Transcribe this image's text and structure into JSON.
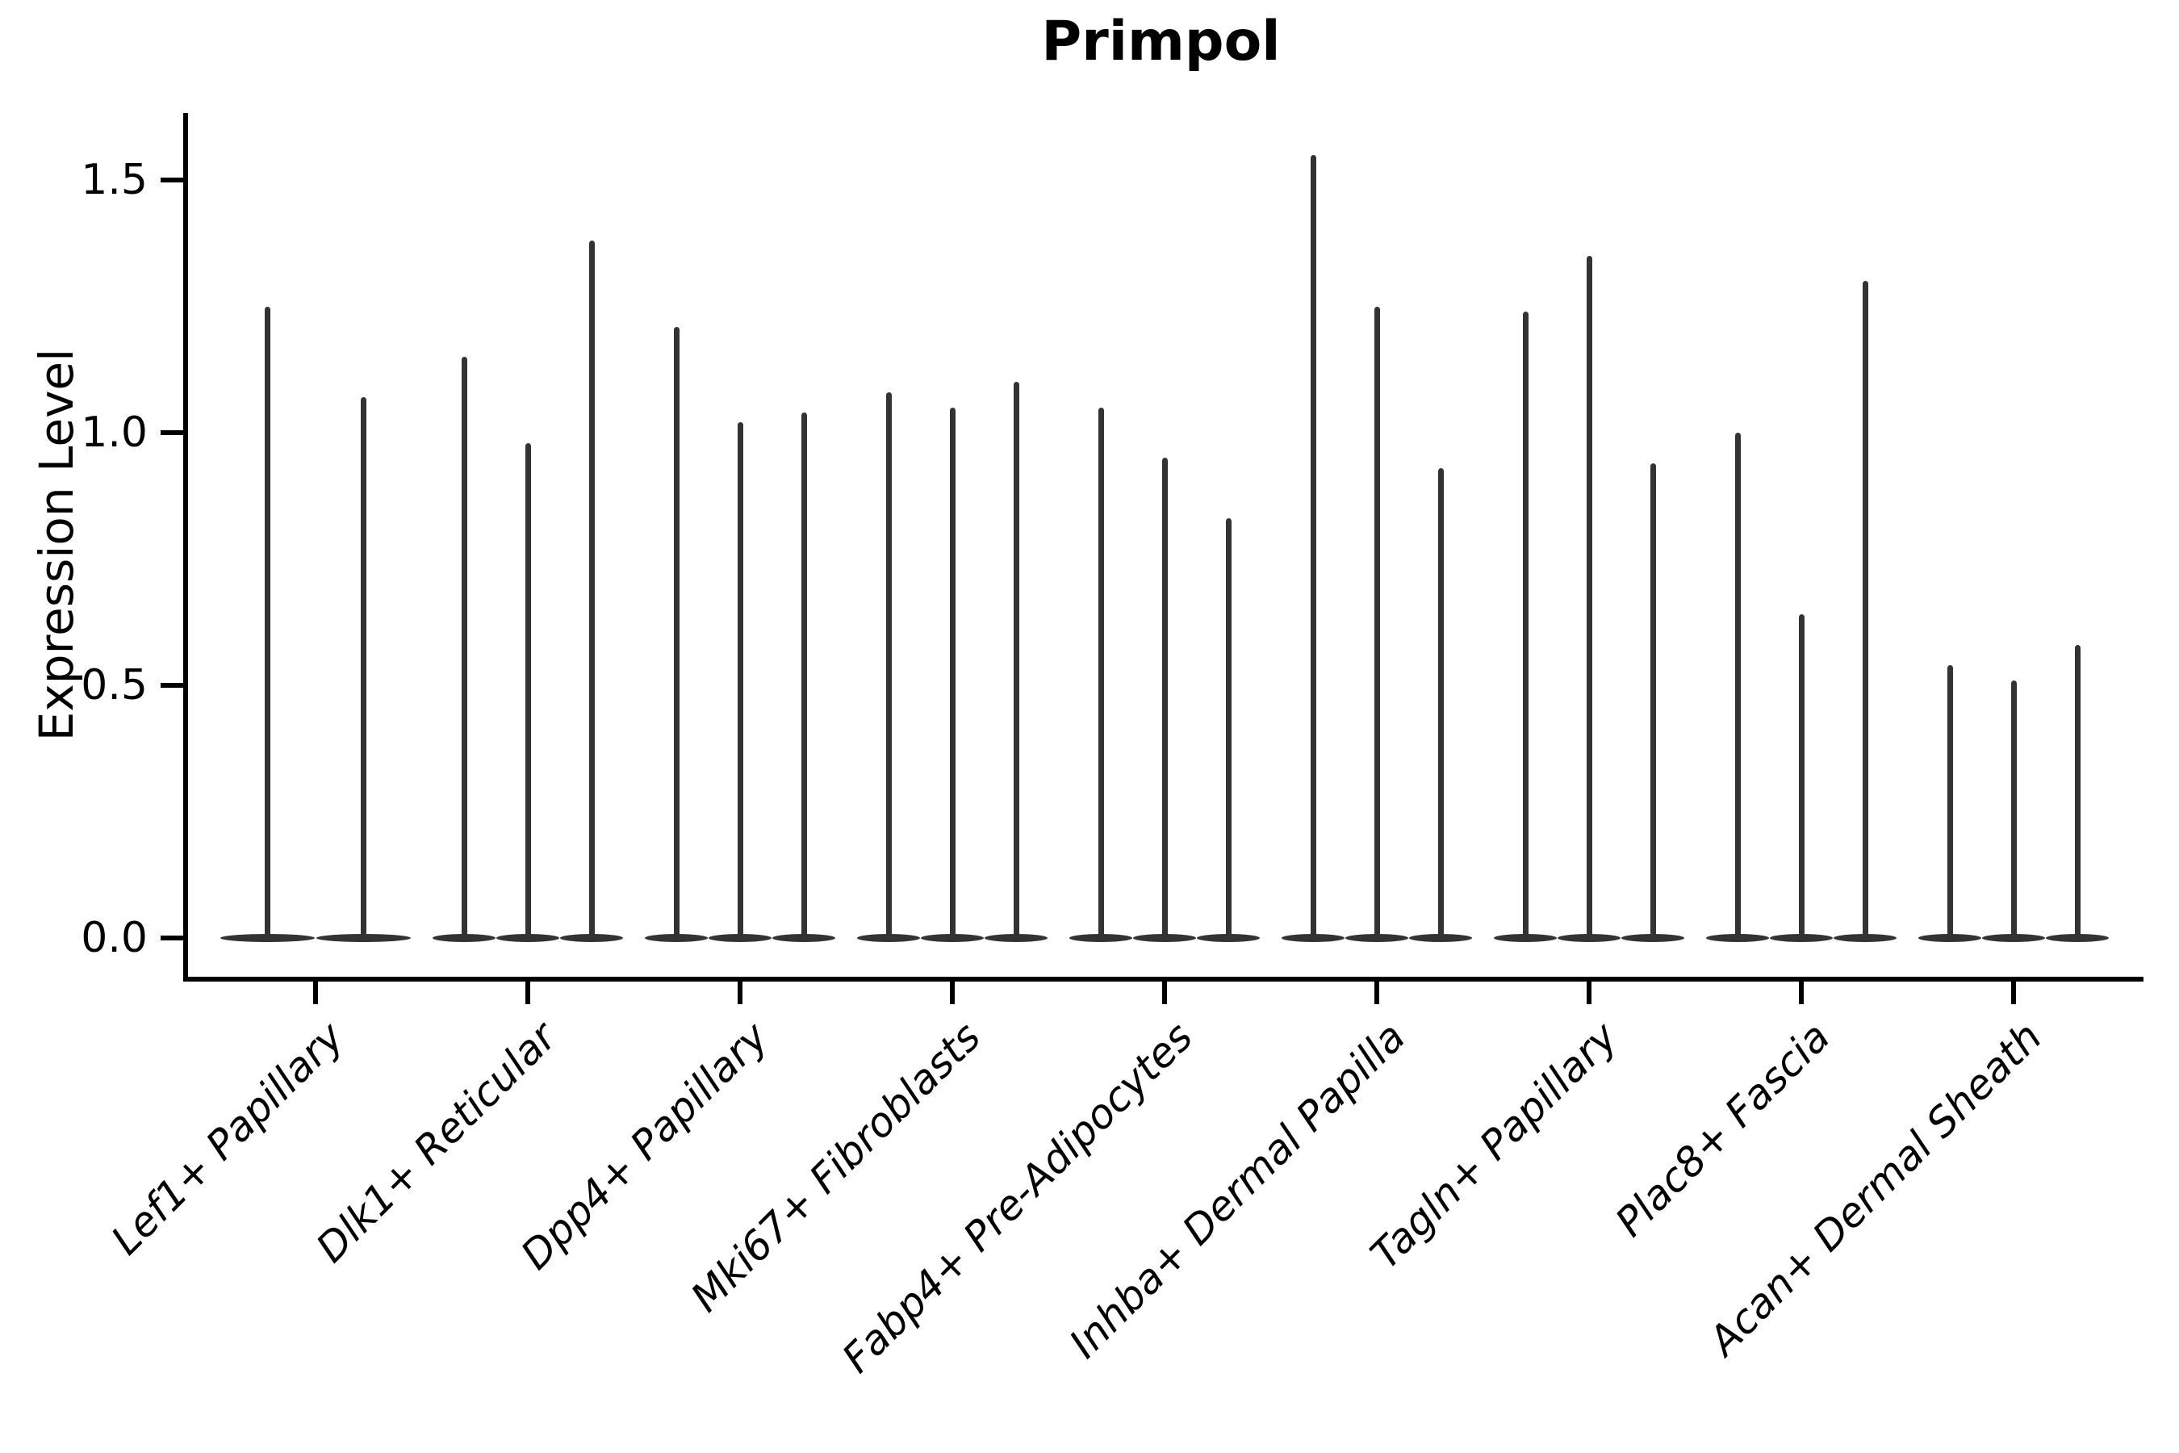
{
  "figure": {
    "title": "Primpol",
    "ylabel": "Expression Level"
  },
  "colors": {
    "violin": "#333333",
    "axis": "#000000",
    "text": "#000000",
    "background": "#ffffff"
  },
  "chart_data": {
    "type": "violin",
    "title": "Primpol",
    "xlabel": "",
    "ylabel": "Expression Level",
    "ylim": [
      0,
      1.63
    ],
    "yticks": [
      "0.0",
      "0.5",
      "1.0",
      "1.5"
    ],
    "grid": false,
    "legend": "none",
    "x_tick_rotation": 45,
    "categories": [
      "Lef1+ Papillary",
      "Dlk1+ Reticular",
      "Dpp4+ Papillary",
      "Mki67+ Fibroblasts",
      "Fabp4+ Pre-Adipocytes",
      "Inhba+ Dermal Papilla",
      "Tagln+ Papillary",
      "Plac8+ Fascia",
      "Acan+ Dermal Sheath"
    ],
    "groups": [
      {
        "category": "Lef1+ Papillary",
        "violin_maxima": [
          1.25,
          1.07
        ]
      },
      {
        "category": "Dlk1+ Reticular",
        "violin_maxima": [
          1.15,
          0.98,
          1.38
        ]
      },
      {
        "category": "Dpp4+ Papillary",
        "violin_maxima": [
          1.21,
          1.02,
          1.04
        ]
      },
      {
        "category": "Mki67+ Fibroblasts",
        "violin_maxima": [
          1.08,
          1.05,
          1.1
        ]
      },
      {
        "category": "Fabp4+ Pre-Adipocytes",
        "violin_maxima": [
          1.05,
          0.95,
          0.83
        ]
      },
      {
        "category": "Inhba+ Dermal Papilla",
        "violin_maxima": [
          1.55,
          1.25,
          0.93
        ]
      },
      {
        "category": "Tagln+ Papillary",
        "violin_maxima": [
          1.24,
          1.35,
          0.94
        ]
      },
      {
        "category": "Plac8+ Fascia",
        "violin_maxima": [
          1.0,
          0.64,
          1.3
        ]
      },
      {
        "category": "Acan+ Dermal Sheath",
        "violin_maxima": [
          0.54,
          0.51,
          0.58
        ]
      }
    ],
    "violin_floor_value": 0.0
  }
}
